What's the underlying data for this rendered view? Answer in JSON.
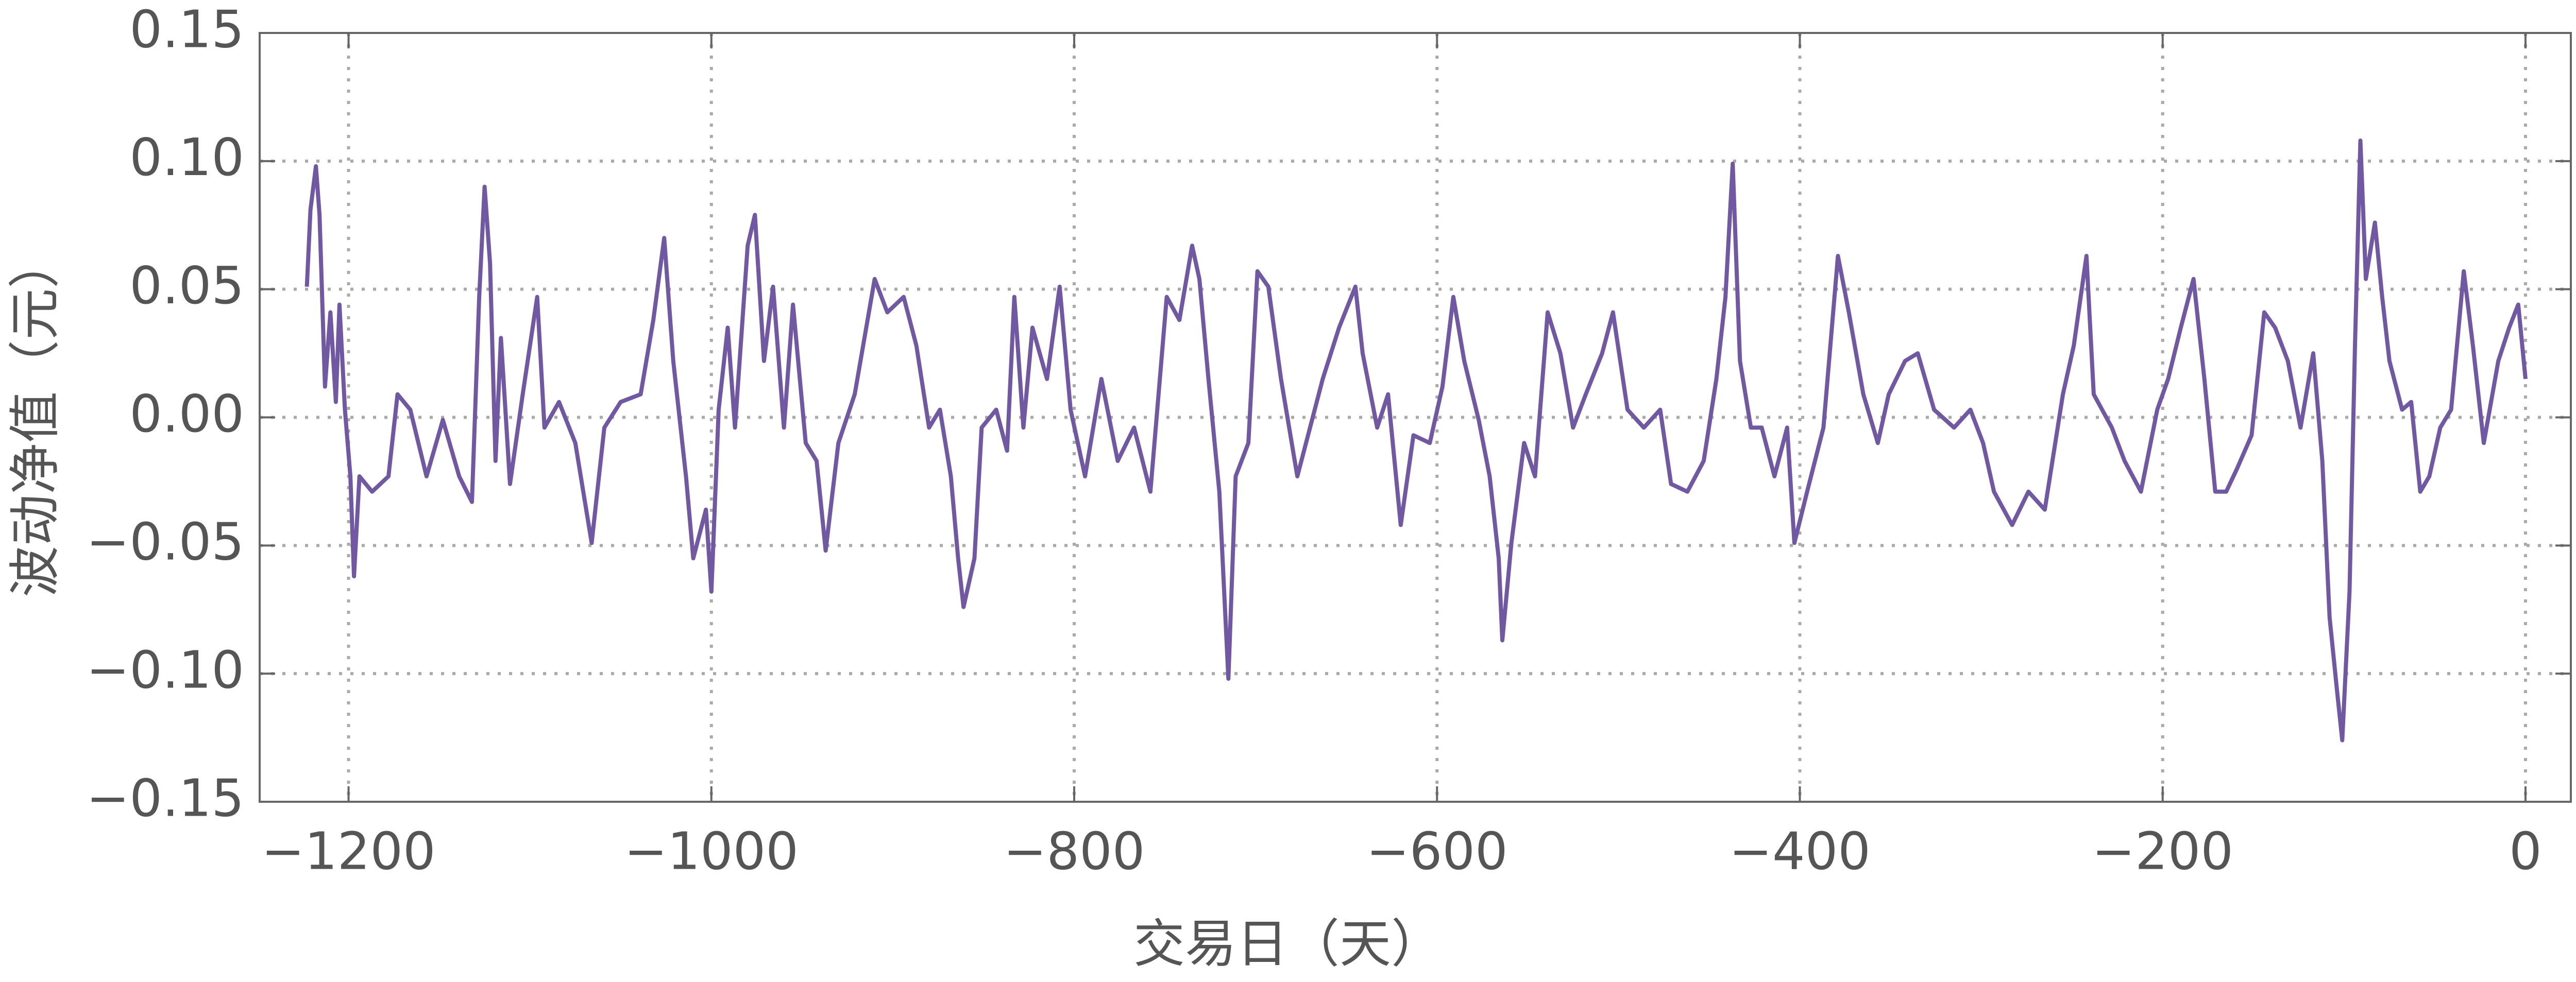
{
  "chart_data": {
    "type": "line",
    "xlabel": "交易日（天）",
    "ylabel": "波动净值（元）",
    "color": "#7058a3",
    "grid": true,
    "xlim": [
      -1249,
      25
    ],
    "ylim": [
      -0.15,
      0.15
    ],
    "xticks": [
      {
        "value": -1200,
        "label": "−1200"
      },
      {
        "value": -1000,
        "label": "−1000"
      },
      {
        "value": -800,
        "label": "−800"
      },
      {
        "value": -600,
        "label": "−600"
      },
      {
        "value": -400,
        "label": "−400"
      },
      {
        "value": -200,
        "label": "−200"
      },
      0
    ],
    "yticks": [
      {
        "value": -0.15,
        "label": "−0.15"
      },
      {
        "value": -0.1,
        "label": "−0.10"
      },
      {
        "value": -0.05,
        "label": "−0.05"
      },
      {
        "value": 0,
        "label": "0.00"
      },
      0.05,
      {
        "value": 0.1,
        "label": "0.10"
      },
      0.15
    ],
    "x": [
      -1223,
      -1221,
      -1218,
      -1216,
      -1213,
      -1210,
      -1207,
      -1205,
      -1202,
      -1199,
      -1197,
      -1194,
      -1187,
      -1178,
      -1173,
      -1166,
      -1157,
      -1148,
      -1139,
      -1132,
      -1128,
      -1125,
      -1122,
      -1119,
      -1116,
      -1111,
      -1104,
      -1096,
      -1092,
      -1084,
      -1075,
      -1066,
      -1059,
      -1050,
      -1039,
      -1032,
      -1026,
      -1021,
      -1014,
      -1010,
      -1003,
      -1000,
      -996,
      -991,
      -987,
      -980,
      -976,
      -971,
      -966,
      -960,
      -955,
      -948,
      -942,
      -937,
      -930,
      -921,
      -910,
      -903,
      -894,
      -887,
      -880,
      -874,
      -868,
      -864,
      -861,
      -855,
      -851,
      -843,
      -837,
      -833,
      -828,
      -823,
      -815,
      -808,
      -802,
      -794,
      -785,
      -776,
      -767,
      -758,
      -749,
      -742,
      -735,
      -731,
      -726,
      -720,
      -715,
      -711,
      -704,
      -699,
      -693,
      -686,
      -677,
      -670,
      -663,
      -654,
      -645,
      -641,
      -633,
      -627,
      -620,
      -613,
      -604,
      -597,
      -591,
      -585,
      -577,
      -571,
      -566,
      -564,
      -559,
      -552,
      -546,
      -539,
      -532,
      -525,
      -518,
      -509,
      -503,
      -495,
      -486,
      -477,
      -471,
      -462,
      -453,
      -446,
      -441,
      -437,
      -433,
      -427,
      -421,
      -414,
      -407,
      -403,
      -396,
      -387,
      -379,
      -373,
      -365,
      -357,
      -351,
      -342,
      -335,
      -326,
      -315,
      -306,
      -299,
      -293,
      -283,
      -274,
      -265,
      -255,
      -249,
      -242,
      -238,
      -228,
      -221,
      -212,
      -203,
      -197,
      -190,
      -183,
      -177,
      -171,
      -165,
      -159,
      -151,
      -144,
      -138,
      -131,
      -124,
      -117,
      -112,
      -108,
      -104,
      -101,
      -97,
      -94,
      -91,
      -88,
      -83,
      -79,
      -75,
      -68,
      -63,
      -58,
      -53,
      -47,
      -41,
      -34,
      -29,
      -23,
      -15,
      -9,
      -4,
      0
    ],
    "values": [
      0.051,
      0.081,
      0.098,
      0.079,
      0.012,
      0.041,
      0.006,
      0.044,
      0.003,
      -0.023,
      -0.062,
      -0.023,
      -0.029,
      -0.023,
      0.009,
      0.003,
      -0.023,
      -0.001,
      -0.023,
      -0.033,
      0.047,
      0.09,
      0.06,
      -0.017,
      0.031,
      -0.026,
      0.009,
      0.047,
      -0.004,
      0.006,
      -0.01,
      -0.049,
      -0.004,
      0.006,
      0.009,
      0.038,
      0.07,
      0.022,
      -0.023,
      -0.055,
      -0.036,
      -0.068,
      0.003,
      0.035,
      -0.004,
      0.067,
      0.079,
      0.022,
      0.051,
      -0.004,
      0.044,
      -0.01,
      -0.017,
      -0.052,
      -0.01,
      0.009,
      0.054,
      0.041,
      0.047,
      0.028,
      -0.004,
      0.003,
      -0.023,
      -0.055,
      -0.074,
      -0.055,
      -0.004,
      0.003,
      -0.013,
      0.047,
      -0.004,
      0.035,
      0.015,
      0.051,
      0.003,
      -0.023,
      0.015,
      -0.017,
      -0.004,
      -0.029,
      0.047,
      0.038,
      0.067,
      0.054,
      0.015,
      -0.029,
      -0.102,
      -0.023,
      -0.01,
      0.057,
      0.051,
      0.015,
      -0.023,
      -0.004,
      0.015,
      0.035,
      0.051,
      0.025,
      -0.004,
      0.009,
      -0.042,
      -0.007,
      -0.01,
      0.012,
      0.047,
      0.022,
      -0.001,
      -0.023,
      -0.055,
      -0.087,
      -0.049,
      -0.01,
      -0.023,
      0.041,
      0.025,
      -0.004,
      0.009,
      0.025,
      0.041,
      0.003,
      -0.004,
      0.003,
      -0.026,
      -0.029,
      -0.017,
      0.015,
      0.047,
      0.099,
      0.022,
      -0.004,
      -0.004,
      -0.023,
      -0.004,
      -0.049,
      -0.029,
      -0.004,
      0.063,
      0.041,
      0.009,
      -0.01,
      0.009,
      0.022,
      0.025,
      0.003,
      -0.004,
      0.003,
      -0.01,
      -0.029,
      -0.042,
      -0.029,
      -0.036,
      0.009,
      0.028,
      0.063,
      0.009,
      -0.004,
      -0.017,
      -0.029,
      0.003,
      0.015,
      0.035,
      0.054,
      0.015,
      -0.029,
      -0.029,
      -0.02,
      -0.007,
      0.041,
      0.035,
      0.022,
      -0.004,
      0.025,
      -0.017,
      -0.078,
      -0.106,
      -0.126,
      -0.068,
      0.028,
      0.108,
      0.054,
      0.076,
      0.047,
      0.022,
      0.003,
      0.006,
      -0.029,
      -0.023,
      -0.004,
      0.003,
      0.057,
      0.028,
      -0.01,
      0.022,
      0.035,
      0.044,
      0.015
    ]
  }
}
